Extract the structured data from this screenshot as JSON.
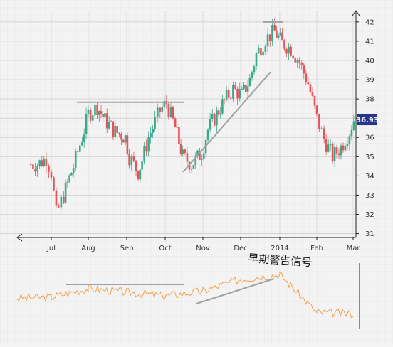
{
  "chart_data": [
    {
      "type": "candlestick",
      "title": "",
      "xlabel": "",
      "ylabel": "",
      "x_ticks": [
        "Jul",
        "Aug",
        "Sep",
        "Oct",
        "Nov",
        "Dec",
        "2014",
        "Feb",
        "Mar"
      ],
      "y_ticks": [
        31,
        32,
        33,
        34,
        35,
        36,
        37,
        38,
        39,
        40,
        41,
        42
      ],
      "ylim": [
        30.8,
        42.4
      ],
      "y_axis_side": "right",
      "grid": true,
      "last_price": "36.93",
      "colors": {
        "up": "#3aa88a",
        "down": "#e5545a",
        "price_tag": "#24348f",
        "trendline": "#a0a0a8"
      },
      "series": [
        {
          "values": [
            {
              "x": "Jun 13",
              "y": 34.6
            },
            {
              "x": "Jun 20",
              "y": 34.9
            },
            {
              "x": "Jun 27",
              "y": 34.2
            },
            {
              "x": "Jul 1",
              "y": 32.0
            },
            {
              "x": "Jul 5",
              "y": 33.0
            },
            {
              "x": "Jul 11",
              "y": 34.5
            },
            {
              "x": "Jul 19",
              "y": 36.0
            },
            {
              "x": "Jul 26",
              "y": 37.2
            },
            {
              "x": "Aug 1",
              "y": 37.6
            },
            {
              "x": "Aug 8",
              "y": 36.9
            },
            {
              "x": "Aug 14",
              "y": 36.3
            },
            {
              "x": "Aug 22",
              "y": 36.0
            },
            {
              "x": "Aug 30",
              "y": 35.0
            },
            {
              "x": "Sep 3",
              "y": 34.2
            },
            {
              "x": "Sep 10",
              "y": 34.8
            },
            {
              "x": "Sep 13",
              "y": 36.0
            },
            {
              "x": "Sep 18",
              "y": 36.8
            },
            {
              "x": "Sep 23",
              "y": 37.4
            },
            {
              "x": "Sep 27",
              "y": 37.8
            },
            {
              "x": "Oct 2",
              "y": 36.5
            },
            {
              "x": "Oct 9",
              "y": 35.0
            },
            {
              "x": "Oct 15",
              "y": 34.6
            },
            {
              "x": "Oct 22",
              "y": 35.2
            },
            {
              "x": "Oct 30",
              "y": 36.4
            },
            {
              "x": "Nov 5",
              "y": 37.2
            },
            {
              "x": "Nov 12",
              "y": 37.9
            },
            {
              "x": "Nov 18",
              "y": 38.5
            },
            {
              "x": "Nov 25",
              "y": 38.2
            },
            {
              "x": "Dec 2",
              "y": 39.0
            },
            {
              "x": "Dec 8",
              "y": 40.3
            },
            {
              "x": "Dec 13",
              "y": 41.1
            },
            {
              "x": "Dec 20",
              "y": 41.5
            },
            {
              "x": "Dec 27",
              "y": 40.9
            },
            {
              "x": "Jan 3",
              "y": 40.6
            },
            {
              "x": "Jan 10",
              "y": 39.9
            },
            {
              "x": "Jan 17",
              "y": 38.8
            },
            {
              "x": "Jan 24",
              "y": 37.0
            },
            {
              "x": "Jan 31",
              "y": 35.9
            },
            {
              "x": "Feb 7",
              "y": 35.0
            },
            {
              "x": "Feb 14",
              "y": 35.5
            },
            {
              "x": "Feb 21",
              "y": 36.3
            },
            {
              "x": "Feb 28",
              "y": 36.93
            }
          ]
        }
      ]
    },
    {
      "type": "line",
      "title": "",
      "annotation": "早期警告信号",
      "grid": true,
      "colors": {
        "line": "#f2a04a",
        "trendline": "#a0a0a8"
      },
      "series": [
        {
          "values": [
            {
              "x": "Jun",
              "y": 0.46
            },
            {
              "x": "Jul",
              "y": 0.48
            },
            {
              "x": "Aug",
              "y": 0.62
            },
            {
              "x": "Sep",
              "y": 0.56
            },
            {
              "x": "Oct",
              "y": 0.5
            },
            {
              "x": "Nov",
              "y": 0.58
            },
            {
              "x": "Dec",
              "y": 0.78
            },
            {
              "x": "2014",
              "y": 0.86
            },
            {
              "x": "Feb",
              "y": 0.22
            },
            {
              "x": "Mar",
              "y": 0.2
            }
          ]
        }
      ]
    }
  ]
}
